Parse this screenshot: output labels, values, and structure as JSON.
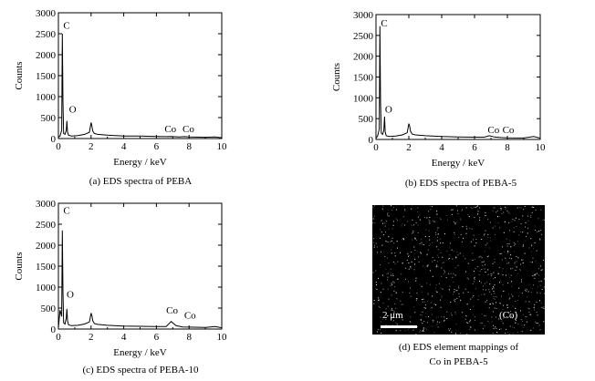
{
  "chart_data": [
    {
      "id": "a",
      "type": "line",
      "caption": "(a) EDS spectra of PEBA",
      "xlabel": "Energy / keV",
      "ylabel": "Counts",
      "xlim": [
        0,
        10
      ],
      "ylim": [
        0,
        3000
      ],
      "xticks": [
        0,
        2,
        4,
        6,
        8,
        10
      ],
      "yticks": [
        0,
        500,
        1000,
        1500,
        2000,
        2500,
        3000
      ],
      "x": [
        0,
        0.1,
        0.2,
        0.24,
        0.28,
        0.32,
        0.4,
        0.48,
        0.52,
        0.56,
        0.62,
        0.8,
        1.2,
        1.6,
        1.9,
        2.0,
        2.05,
        2.1,
        2.2,
        2.4,
        3.0,
        4.0,
        5.0,
        6.0,
        6.6,
        6.9,
        7.4,
        7.7,
        8.0,
        9.0,
        9.6,
        10.0
      ],
      "y": [
        30,
        60,
        200,
        2500,
        900,
        120,
        100,
        200,
        420,
        150,
        80,
        60,
        70,
        100,
        150,
        380,
        300,
        180,
        120,
        100,
        80,
        60,
        60,
        50,
        45,
        50,
        40,
        45,
        40,
        30,
        40,
        20
      ],
      "annotations": [
        {
          "text": "C",
          "x": 0.3,
          "y": 2620
        },
        {
          "text": "O",
          "x": 0.65,
          "y": 620
        },
        {
          "text": "Co",
          "x": 6.5,
          "y": 150
        },
        {
          "text": "Co",
          "x": 7.6,
          "y": 150
        }
      ]
    },
    {
      "id": "b",
      "type": "line",
      "caption": "(b) EDS spectra of PEBA-5",
      "xlabel": "Energy / keV",
      "ylabel": "Counts",
      "xlim": [
        0,
        10
      ],
      "ylim": [
        0,
        3000
      ],
      "xticks": [
        0,
        2,
        4,
        6,
        8,
        10
      ],
      "yticks": [
        0,
        500,
        1000,
        1500,
        2000,
        2500,
        3000
      ],
      "x": [
        0,
        0.1,
        0.2,
        0.24,
        0.28,
        0.32,
        0.4,
        0.48,
        0.52,
        0.56,
        0.62,
        0.8,
        1.2,
        1.6,
        1.9,
        2.0,
        2.05,
        2.1,
        2.2,
        2.4,
        3.0,
        4.0,
        5.0,
        6.0,
        6.6,
        6.9,
        7.2,
        7.6,
        8.0,
        9.0,
        9.6,
        10.0
      ],
      "y": [
        30,
        80,
        250,
        2720,
        900,
        150,
        120,
        220,
        550,
        180,
        90,
        70,
        80,
        110,
        160,
        380,
        320,
        200,
        130,
        110,
        90,
        70,
        60,
        55,
        55,
        90,
        60,
        45,
        40,
        35,
        70,
        30
      ],
      "annotations": [
        {
          "text": "C",
          "x": 0.3,
          "y": 2720
        },
        {
          "text": "O",
          "x": 0.55,
          "y": 650
        },
        {
          "text": "Co",
          "x": 6.8,
          "y": 150
        },
        {
          "text": "Co",
          "x": 7.7,
          "y": 150
        }
      ]
    },
    {
      "id": "c",
      "type": "line",
      "caption": "(c) EDS spectra of PEBA-10",
      "xlabel": "Energy / keV",
      "ylabel": "Counts",
      "xlim": [
        0,
        10
      ],
      "ylim": [
        0,
        3000
      ],
      "xticks": [
        0,
        2,
        4,
        6,
        8,
        10
      ],
      "yticks": [
        0,
        500,
        1000,
        1500,
        2000,
        2500,
        3000
      ],
      "x": [
        0,
        0.1,
        0.2,
        0.24,
        0.28,
        0.32,
        0.4,
        0.48,
        0.52,
        0.56,
        0.62,
        0.8,
        1.2,
        1.6,
        1.9,
        2.0,
        2.05,
        2.1,
        2.2,
        2.4,
        3.0,
        4.0,
        5.0,
        6.0,
        6.6,
        6.9,
        7.2,
        7.6,
        8.0,
        9.0,
        9.6,
        10.0
      ],
      "y": [
        30,
        450,
        300,
        2350,
        900,
        150,
        120,
        260,
        480,
        200,
        100,
        80,
        90,
        120,
        170,
        380,
        320,
        200,
        130,
        110,
        90,
        70,
        65,
        60,
        60,
        180,
        80,
        50,
        45,
        40,
        60,
        30
      ],
      "annotations": [
        {
          "text": "C",
          "x": 0.3,
          "y": 2750
        },
        {
          "text": "O",
          "x": 0.5,
          "y": 750
        },
        {
          "text": "Co",
          "x": 6.6,
          "y": 370
        },
        {
          "text": "Co",
          "x": 7.7,
          "y": 250
        }
      ]
    }
  ],
  "map": {
    "caption_line1": "(d) EDS element mappings of",
    "caption_line2": "Co in PEBA-5",
    "scale_label": "2 μm",
    "element_tag": "(Co)",
    "background": "#000000",
    "dot_color": "#ffffff"
  }
}
